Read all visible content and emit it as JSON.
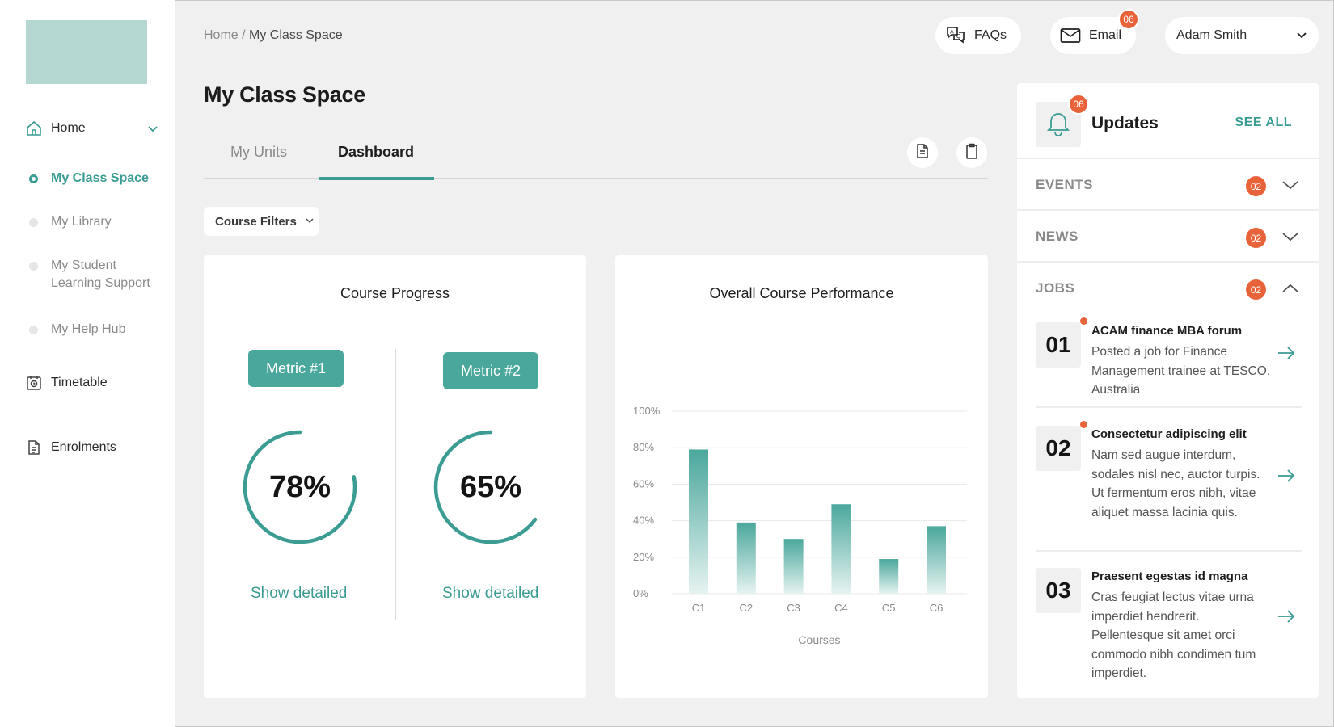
{
  "sidebar": {
    "items": [
      {
        "label": "Home",
        "icon": "home-icon"
      },
      {
        "label": "My Class Space",
        "active": true
      },
      {
        "label": "My Library"
      },
      {
        "label": "My Student Learning Support"
      },
      {
        "label": "My Help Hub"
      },
      {
        "label": "Timetable",
        "icon": "timetable-icon"
      },
      {
        "label": "Enrolments",
        "icon": "document-icon"
      }
    ]
  },
  "header": {
    "breadcrumb_root": "Home /",
    "breadcrumb_current": "My Class Space",
    "faqs_label": "FAQs",
    "email_label": "Email",
    "email_count": "06",
    "user_name": "Adam Smith"
  },
  "page_title": "My Class Space",
  "tabs": [
    {
      "label": "My Units"
    },
    {
      "label": "Dashboard",
      "active": true
    }
  ],
  "filter_label": "Course Filters",
  "progress_card": {
    "title": "Course Progress",
    "metrics": [
      {
        "label": "Metric #1",
        "value_text": "78%",
        "value": 78,
        "link": "Show detailed"
      },
      {
        "label": "Metric #2",
        "value_text": "65%",
        "value": 65,
        "link": "Show detailed"
      }
    ]
  },
  "chart_data": {
    "type": "bar",
    "title": "Overall Course Performance",
    "xlabel": "Courses",
    "ylabel": "",
    "categories": [
      "C1",
      "C2",
      "C3",
      "C4",
      "C5",
      "C6"
    ],
    "values": [
      79,
      39,
      30,
      49,
      19,
      37
    ],
    "ylim": [
      0,
      100
    ],
    "yticks": [
      "0%",
      "20%",
      "40%",
      "60%",
      "80%",
      "100%"
    ],
    "grid": true,
    "color": "#4aa79c"
  },
  "updates": {
    "title": "Updates",
    "count": "06",
    "see_all": "SEE ALL",
    "sections": [
      {
        "label": "EVENTS",
        "count": "02",
        "expanded": false
      },
      {
        "label": "NEWS",
        "count": "02",
        "expanded": false
      },
      {
        "label": "JOBS",
        "count": "02",
        "expanded": true
      }
    ],
    "jobs": [
      {
        "num": "01",
        "title": "ACAM finance MBA forum",
        "desc": "Posted a job for Finance Management trainee at TESCO, Australia",
        "unread": true
      },
      {
        "num": "02",
        "title": "Consectetur adipiscing elit",
        "desc": "Nam sed augue interdum, sodales nisl nec, auctor turpis. Ut fermentum eros nibh, vitae aliquet massa lacinia quis.",
        "unread": true
      },
      {
        "num": "03",
        "title": "Praesent egestas id magna",
        "desc": "Cras feugiat lectus vitae urna imperdiet hendrerit. Pellentesque sit amet orci commodo nibh condimen tum imperdiet.",
        "unread": false
      }
    ]
  },
  "colors": {
    "accent": "#3a9c92",
    "badge": "#e8633a",
    "logo": "#b4d8d1"
  }
}
